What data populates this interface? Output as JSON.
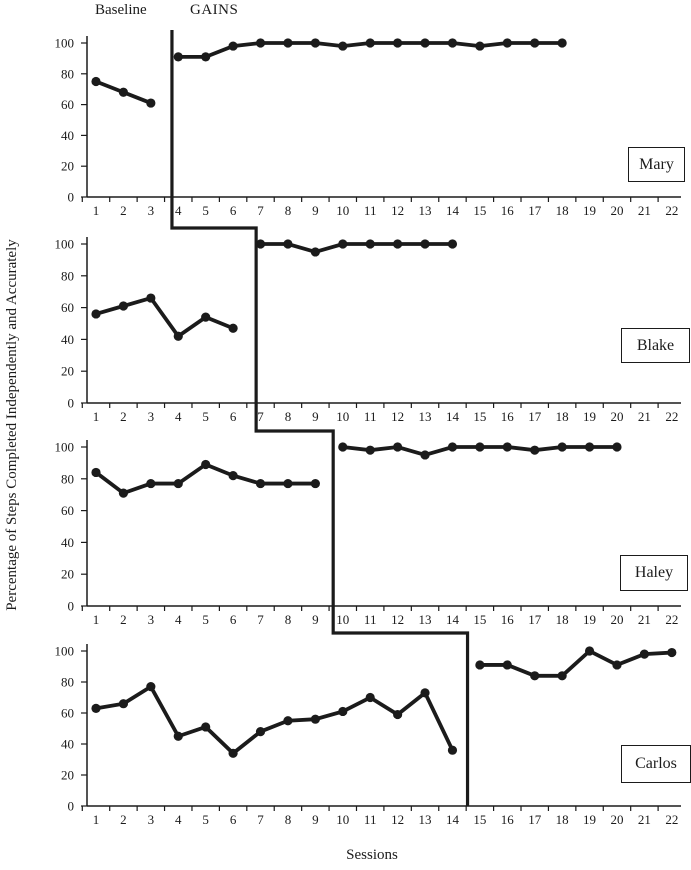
{
  "colors": {
    "ink": "#1b1b1b",
    "background": "#ffffff"
  },
  "chart_data": {
    "type": "line",
    "design": "multiple-baseline-across-participants",
    "xlabel": "Sessions",
    "ylabel": "Percentage of Steps Completed Independently and Accurately",
    "condition_labels": [
      "Baseline",
      "GAINS"
    ],
    "xlim": [
      1,
      22
    ],
    "ylim": [
      0,
      100
    ],
    "x_ticks": [
      1,
      2,
      3,
      4,
      5,
      6,
      7,
      8,
      9,
      10,
      11,
      12,
      13,
      14,
      15,
      16,
      17,
      18,
      19,
      20,
      21,
      22
    ],
    "y_ticks": [
      0,
      20,
      40,
      60,
      80,
      100
    ],
    "grid": false,
    "legend_position": "none",
    "marker": "filled-circle",
    "panels": [
      {
        "name": "Mary",
        "gains_start_session": 4,
        "phase_line_x": 3.77,
        "series": [
          {
            "name": "Baseline",
            "x": [
              1,
              2,
              3
            ],
            "y": [
              75,
              68,
              61
            ]
          },
          {
            "name": "GAINS",
            "x": [
              4,
              5,
              6,
              7,
              8,
              9,
              10,
              11,
              12,
              13,
              14,
              15,
              16,
              17,
              18
            ],
            "y": [
              91,
              91,
              98,
              100,
              100,
              100,
              98,
              100,
              100,
              100,
              100,
              98,
              100,
              100,
              100
            ]
          }
        ]
      },
      {
        "name": "Blake",
        "gains_start_session": 7,
        "phase_line_x": 6.84,
        "series": [
          {
            "name": "Baseline",
            "x": [
              1,
              2,
              3,
              4,
              5,
              6
            ],
            "y": [
              56,
              61,
              66,
              42,
              54,
              47
            ]
          },
          {
            "name": "GAINS",
            "x": [
              7,
              8,
              9,
              10,
              11,
              12,
              13,
              14
            ],
            "y": [
              100,
              100,
              95,
              100,
              100,
              100,
              100,
              100
            ]
          }
        ]
      },
      {
        "name": "Haley",
        "gains_start_session": 10,
        "phase_line_x": 9.65,
        "series": [
          {
            "name": "Baseline",
            "x": [
              1,
              2,
              3,
              4,
              5,
              6,
              7,
              8,
              9
            ],
            "y": [
              84,
              71,
              77,
              77,
              89,
              82,
              77,
              77,
              77
            ]
          },
          {
            "name": "GAINS",
            "x": [
              10,
              11,
              12,
              13,
              14,
              15,
              16,
              17,
              18,
              19,
              20
            ],
            "y": [
              100,
              98,
              100,
              95,
              100,
              100,
              100,
              98,
              100,
              100,
              100
            ]
          }
        ]
      },
      {
        "name": "Carlos",
        "gains_start_session": 15,
        "phase_line_x": 14.55,
        "series": [
          {
            "name": "Baseline",
            "x": [
              1,
              2,
              3,
              4,
              5,
              6,
              7,
              8,
              9,
              10,
              11,
              12,
              13,
              14
            ],
            "y": [
              63,
              66,
              77,
              45,
              51,
              34,
              48,
              55,
              56,
              61,
              70,
              59,
              73,
              36
            ]
          },
          {
            "name": "GAINS",
            "x": [
              15,
              16,
              17,
              18,
              19,
              20,
              21,
              22
            ],
            "y": [
              91,
              91,
              84,
              84,
              100,
              91,
              98,
              99
            ]
          }
        ]
      }
    ]
  }
}
